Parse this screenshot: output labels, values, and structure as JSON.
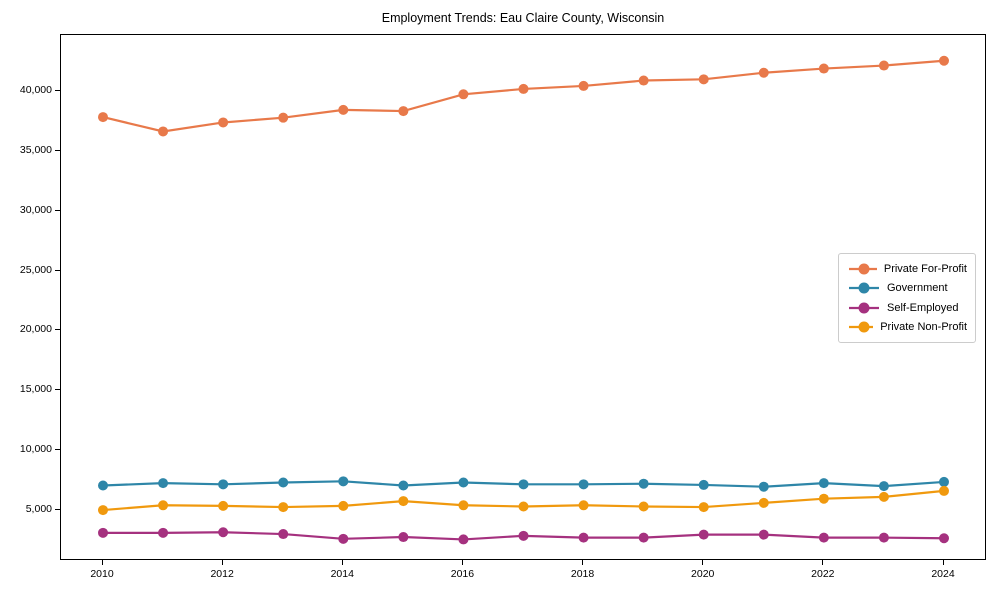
{
  "chart_data": {
    "type": "line",
    "title": "Employment Trends: Eau Claire County, Wisconsin",
    "xlabel": "",
    "ylabel": "",
    "grid": false,
    "legend_position": "right",
    "background_color": "#ffffff",
    "axis_color": "#000000",
    "x": [
      2010,
      2011,
      2012,
      2013,
      2014,
      2015,
      2016,
      2017,
      2018,
      2019,
      2020,
      2021,
      2022,
      2023,
      2024
    ],
    "x_ticks": [
      2010,
      2012,
      2014,
      2016,
      2018,
      2020,
      2022,
      2024
    ],
    "x_tick_labels": [
      "2010",
      "2012",
      "2014",
      "2016",
      "2018",
      "2020",
      "2022",
      "2024"
    ],
    "y_ticks": [
      5000,
      10000,
      15000,
      20000,
      25000,
      30000,
      35000,
      40000
    ],
    "y_tick_labels": [
      "5,000",
      "10,000",
      "15,000",
      "20,000",
      "25,000",
      "30,000",
      "35,000",
      "40,000"
    ],
    "ylim": [
      800,
      44700
    ],
    "series": [
      {
        "name": "Private For-Profit",
        "color": "#E8794A",
        "values": [
          37850,
          36650,
          37400,
          37800,
          38450,
          38350,
          39750,
          40200,
          40450,
          40900,
          41000,
          41550,
          41900,
          42150,
          42550
        ]
      },
      {
        "name": "Government",
        "color": "#2E86A8",
        "values": [
          7100,
          7300,
          7200,
          7350,
          7450,
          7100,
          7350,
          7200,
          7200,
          7250,
          7150,
          7000,
          7300,
          7050,
          7400
        ]
      },
      {
        "name": "Self-Employed",
        "color": "#A5317F",
        "values": [
          3150,
          3150,
          3200,
          3050,
          2650,
          2800,
          2600,
          2900,
          2750,
          2750,
          3000,
          3000,
          2750,
          2750,
          2700
        ]
      },
      {
        "name": "Private Non-Profit",
        "color": "#F0990E",
        "values": [
          5050,
          5450,
          5400,
          5300,
          5400,
          5800,
          5450,
          5350,
          5450,
          5350,
          5300,
          5650,
          6000,
          6150,
          6650
        ]
      }
    ]
  }
}
